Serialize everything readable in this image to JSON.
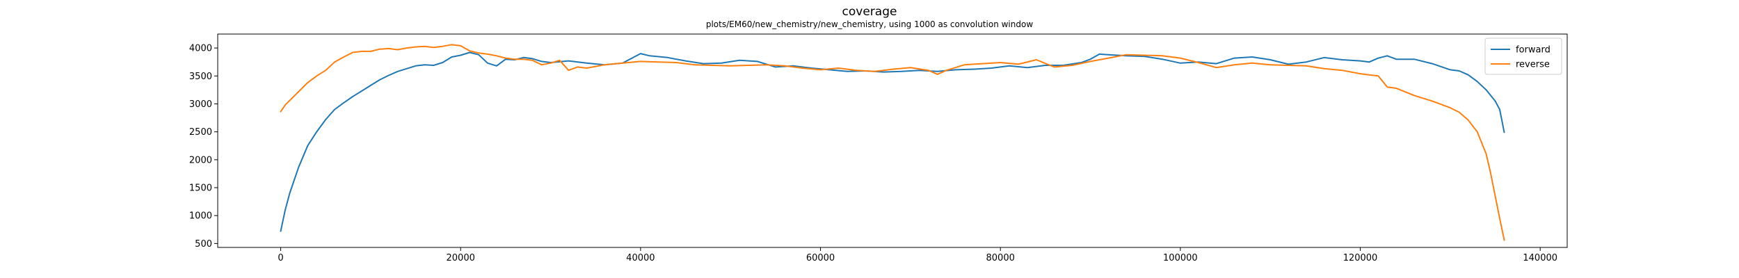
{
  "chart_data": {
    "type": "line",
    "title": "coverage",
    "subtitle": "plots/EM60/new_chemistry/new_chemistry, using 1000 as convolution window",
    "xlim": [
      -7000,
      143000
    ],
    "ylim": [
      430,
      4250
    ],
    "xticks": [
      0,
      20000,
      40000,
      60000,
      80000,
      100000,
      120000,
      140000
    ],
    "yticks": [
      500,
      1000,
      1500,
      2000,
      2500,
      3000,
      3500,
      4000
    ],
    "grid": false,
    "legend_position": "top-right",
    "series": [
      {
        "name": "forward",
        "color": "#1f77b4",
        "x": [
          0,
          500,
          1000,
          2000,
          3000,
          4000,
          5000,
          6000,
          7000,
          8000,
          9000,
          10000,
          11000,
          12000,
          13000,
          14000,
          15000,
          16000,
          17000,
          18000,
          19000,
          20000,
          21000,
          22000,
          23000,
          24000,
          25000,
          26000,
          27000,
          28000,
          29000,
          30000,
          32000,
          34000,
          36000,
          38000,
          40000,
          41000,
          43000,
          45000,
          47000,
          49000,
          51000,
          53000,
          55000,
          57000,
          59000,
          61000,
          63000,
          65000,
          67000,
          69000,
          71000,
          73000,
          75000,
          77000,
          79000,
          81000,
          83000,
          85000,
          87000,
          89000,
          90000,
          91000,
          92000,
          94000,
          96000,
          98000,
          100000,
          102000,
          104000,
          106000,
          108000,
          110000,
          112000,
          114000,
          116000,
          118000,
          120000,
          121000,
          122000,
          123000,
          124000,
          126000,
          128000,
          130000,
          131000,
          132000,
          133000,
          134000,
          135000,
          135500,
          136000
        ],
        "y": [
          720,
          1100,
          1400,
          1870,
          2250,
          2500,
          2720,
          2900,
          3020,
          3130,
          3230,
          3330,
          3430,
          3510,
          3580,
          3630,
          3680,
          3700,
          3690,
          3740,
          3840,
          3870,
          3920,
          3880,
          3730,
          3680,
          3800,
          3790,
          3830,
          3810,
          3760,
          3740,
          3770,
          3730,
          3700,
          3730,
          3900,
          3860,
          3830,
          3770,
          3720,
          3730,
          3780,
          3760,
          3660,
          3680,
          3640,
          3610,
          3580,
          3590,
          3570,
          3580,
          3600,
          3580,
          3610,
          3620,
          3640,
          3680,
          3650,
          3690,
          3690,
          3740,
          3800,
          3890,
          3880,
          3860,
          3850,
          3800,
          3730,
          3750,
          3720,
          3820,
          3840,
          3790,
          3710,
          3750,
          3830,
          3790,
          3770,
          3750,
          3820,
          3860,
          3800,
          3800,
          3720,
          3610,
          3590,
          3520,
          3400,
          3250,
          3050,
          2900,
          2490
        ]
      },
      {
        "name": "reverse",
        "color": "#ff7f0e",
        "x": [
          0,
          500,
          1000,
          2000,
          3000,
          4000,
          5000,
          6000,
          7000,
          8000,
          9000,
          10000,
          11000,
          12000,
          13000,
          14000,
          15000,
          16000,
          17000,
          18000,
          19000,
          20000,
          21000,
          22000,
          23000,
          24000,
          25000,
          26000,
          27000,
          28000,
          29000,
          30000,
          31000,
          32000,
          33000,
          34000,
          35000,
          36000,
          38000,
          40000,
          42000,
          44000,
          46000,
          48000,
          50000,
          52000,
          54000,
          56000,
          58000,
          60000,
          62000,
          64000,
          66000,
          68000,
          70000,
          72000,
          73000,
          74000,
          76000,
          78000,
          80000,
          82000,
          84000,
          86000,
          88000,
          90000,
          92000,
          94000,
          96000,
          98000,
          100000,
          102000,
          104000,
          106000,
          108000,
          110000,
          112000,
          114000,
          116000,
          118000,
          120000,
          121000,
          122000,
          123000,
          124000,
          126000,
          128000,
          130000,
          131000,
          132000,
          133000,
          134000,
          134500,
          135000,
          135500,
          136000
        ],
        "y": [
          2860,
          2980,
          3060,
          3220,
          3380,
          3500,
          3600,
          3750,
          3840,
          3920,
          3940,
          3940,
          3980,
          3990,
          3970,
          4000,
          4020,
          4030,
          4010,
          4030,
          4060,
          4040,
          3950,
          3910,
          3890,
          3860,
          3820,
          3800,
          3800,
          3780,
          3700,
          3730,
          3780,
          3600,
          3660,
          3640,
          3670,
          3700,
          3730,
          3760,
          3750,
          3740,
          3700,
          3690,
          3680,
          3690,
          3700,
          3680,
          3640,
          3610,
          3640,
          3600,
          3580,
          3620,
          3650,
          3600,
          3530,
          3600,
          3700,
          3720,
          3740,
          3710,
          3790,
          3660,
          3690,
          3760,
          3820,
          3880,
          3870,
          3860,
          3820,
          3740,
          3650,
          3700,
          3730,
          3700,
          3690,
          3680,
          3630,
          3600,
          3540,
          3520,
          3500,
          3300,
          3280,
          3150,
          3050,
          2930,
          2850,
          2710,
          2500,
          2100,
          1750,
          1350,
          950,
          560
        ]
      }
    ]
  }
}
